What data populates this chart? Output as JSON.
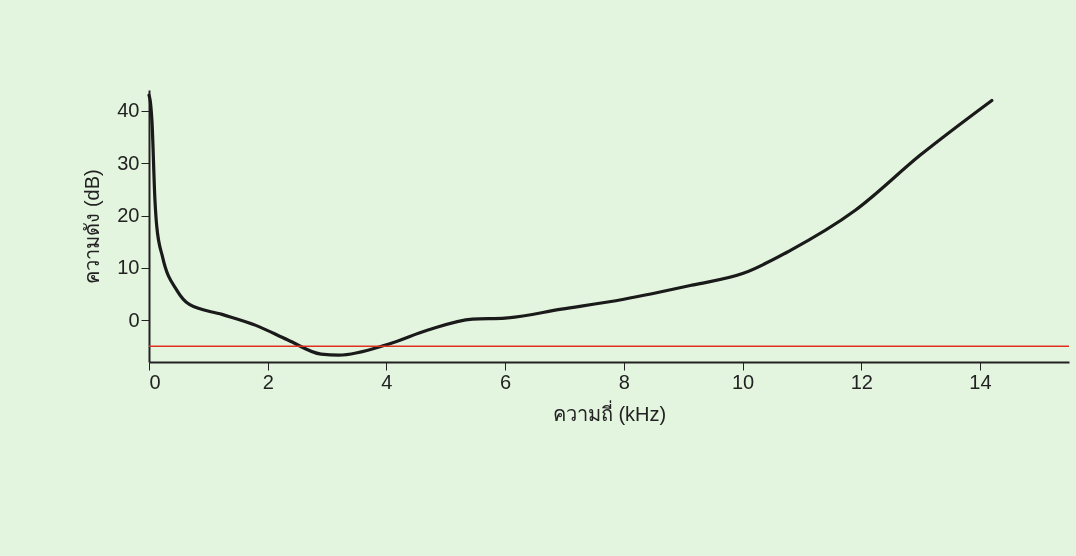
{
  "chart_data": {
    "type": "line",
    "xlabel": "ความถี่ (kHz)",
    "ylabel": "ความดัง (dB)",
    "x": [
      0,
      0.02,
      0.05,
      0.1,
      0.13,
      0.23,
      0.47,
      0.68,
      1.23,
      1.8,
      2.34,
      2.9,
      3.2,
      4.03,
      4.7,
      5.45,
      6.0,
      6.95,
      8.0,
      9.15,
      10.0,
      10.8,
      11.9,
      13.0,
      14.2
    ],
    "series": [
      {
        "color": "#1a1a1a",
        "values": [
          43,
          42,
          38,
          23,
          18,
          12,
          5.7,
          3,
          1.1,
          -1,
          -3.8,
          -6.5,
          -6.7,
          -4.6,
          -1.9,
          0.2,
          0.4,
          2.1,
          4,
          6.7,
          8.9,
          13.3,
          21,
          31.6,
          42
        ]
      }
    ],
    "xlim": [
      0,
      15.5
    ],
    "xticks": [
      0,
      2,
      4,
      6,
      8,
      10,
      12,
      14
    ],
    "ylim": [
      -8,
      44
    ],
    "yticks": [
      0,
      10,
      20,
      30,
      40
    ],
    "ref_lines": [
      {
        "axis": "y",
        "value": -5,
        "color": "#e0301e"
      }
    ],
    "grid": false,
    "legend": false
  }
}
